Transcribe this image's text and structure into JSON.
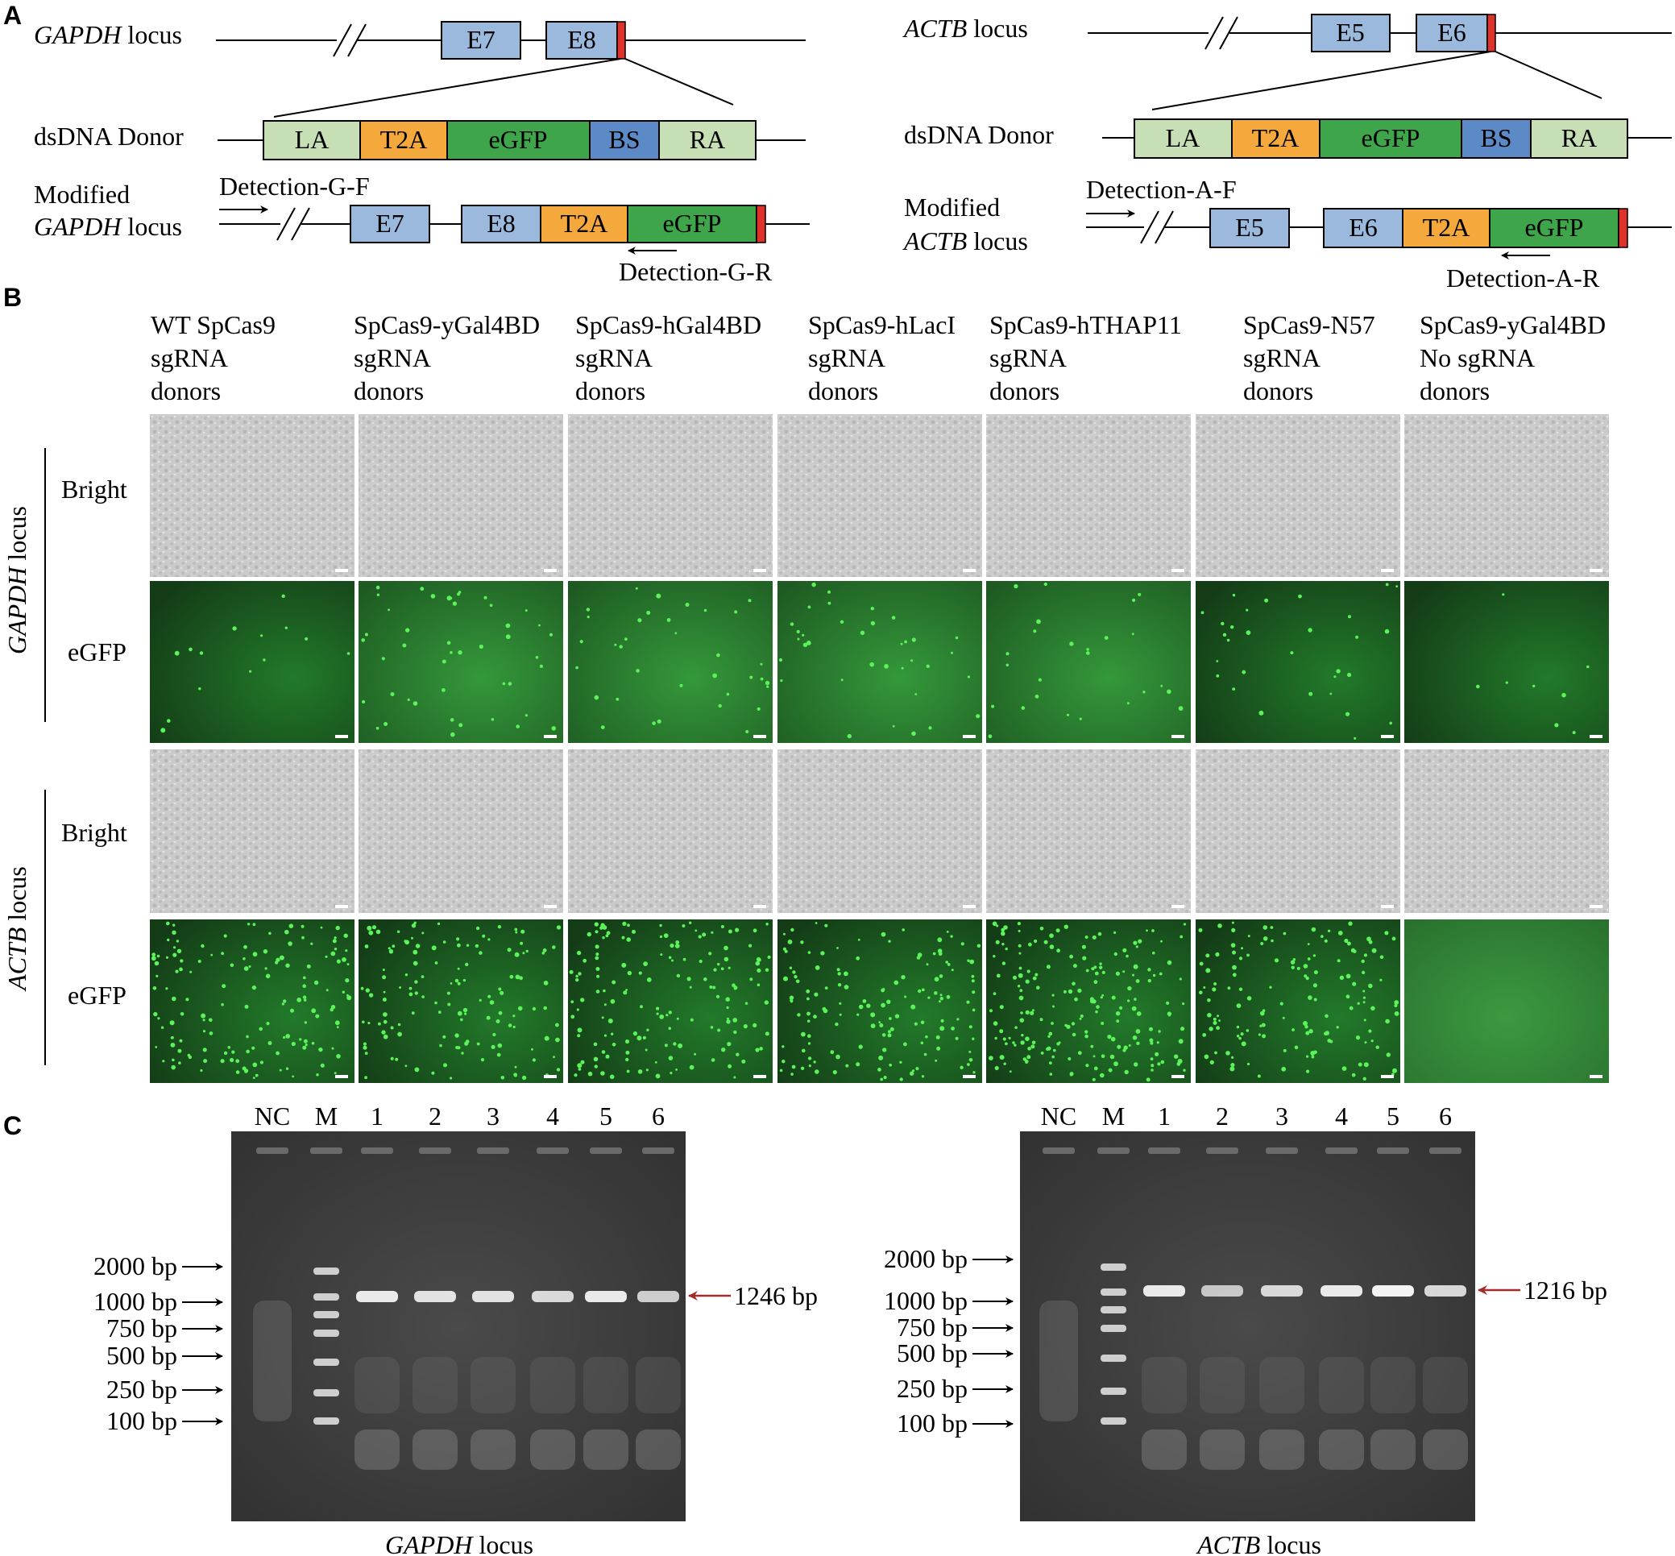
{
  "panels": {
    "a": "A",
    "b": "B",
    "c": "C"
  },
  "colors": {
    "exon": "#9ab9dc",
    "arm": "#c6dfb4",
    "t2a": "#f5a83b",
    "egfp": "#3ea54a",
    "bs": "#5b8ac6",
    "stop": "#e0312b",
    "bright_field": "#cfcfcf",
    "fluor_field": "#1f5a24",
    "gel": "#3a3a3a",
    "red_arrow": "#a52a2a"
  },
  "panelA": {
    "gapdh": {
      "locus_label_italic": "GAPDH",
      "locus_label_rest": " locus",
      "exons": [
        "E7",
        "E8"
      ],
      "donor_label": "dsDNA Donor",
      "donor_segments": [
        "LA",
        "T2A",
        "eGFP",
        "BS",
        "RA"
      ],
      "modified_line1": "Modified",
      "modified_italic": "GAPDH",
      "modified_rest": " locus",
      "mod_segments": [
        "E7",
        "E8",
        "T2A",
        "eGFP"
      ],
      "primer_f": "Detection-G-F",
      "primer_r": "Detection-G-R"
    },
    "actb": {
      "locus_label_italic": "ACTB",
      "locus_label_rest": " locus",
      "exons": [
        "E5",
        "E6"
      ],
      "donor_label": "dsDNA Donor",
      "donor_segments": [
        "LA",
        "T2A",
        "eGFP",
        "BS",
        "RA"
      ],
      "modified_line1": "Modified",
      "modified_italic": "ACTB",
      "modified_rest": " locus",
      "mod_segments": [
        "E5",
        "E6",
        "T2A",
        "eGFP"
      ],
      "primer_f": "Detection-A-F",
      "primer_r": "Detection-A-R"
    }
  },
  "panelB": {
    "columns": [
      [
        "WT SpCas9",
        "sgRNA",
        "donors"
      ],
      [
        "SpCas9-yGal4BD",
        "sgRNA",
        "donors"
      ],
      [
        "SpCas9-hGal4BD",
        "sgRNA",
        "donors"
      ],
      [
        "SpCas9-hLacI",
        "sgRNA",
        "donors"
      ],
      [
        "SpCas9-hTHAP11",
        "sgRNA",
        "donors"
      ],
      [
        "SpCas9-N57",
        "sgRNA",
        "donors"
      ],
      [
        "SpCas9-yGal4BD",
        "No sgRNA",
        "donors"
      ]
    ],
    "row_labels": [
      "Bright",
      "eGFP",
      "Bright",
      "eGFP"
    ],
    "group_gapdh_italic": "GAPDH",
    "group_gapdh_rest": " locus",
    "group_actb_italic": "ACTB",
    "group_actb_rest": " locus"
  },
  "panelC": {
    "lanes": [
      "NC",
      "M",
      "1",
      "2",
      "3",
      "4",
      "5",
      "6"
    ],
    "ladder": [
      "2000 bp",
      "1000 bp",
      "750 bp",
      "500 bp",
      "250 bp",
      "100 bp"
    ],
    "gapdh_band": "1246 bp",
    "actb_band": "1216 bp",
    "gapdh_caption_italic": "GAPDH",
    "gapdh_caption_rest": " locus",
    "actb_caption_italic": "ACTB",
    "actb_caption_rest": " locus"
  }
}
